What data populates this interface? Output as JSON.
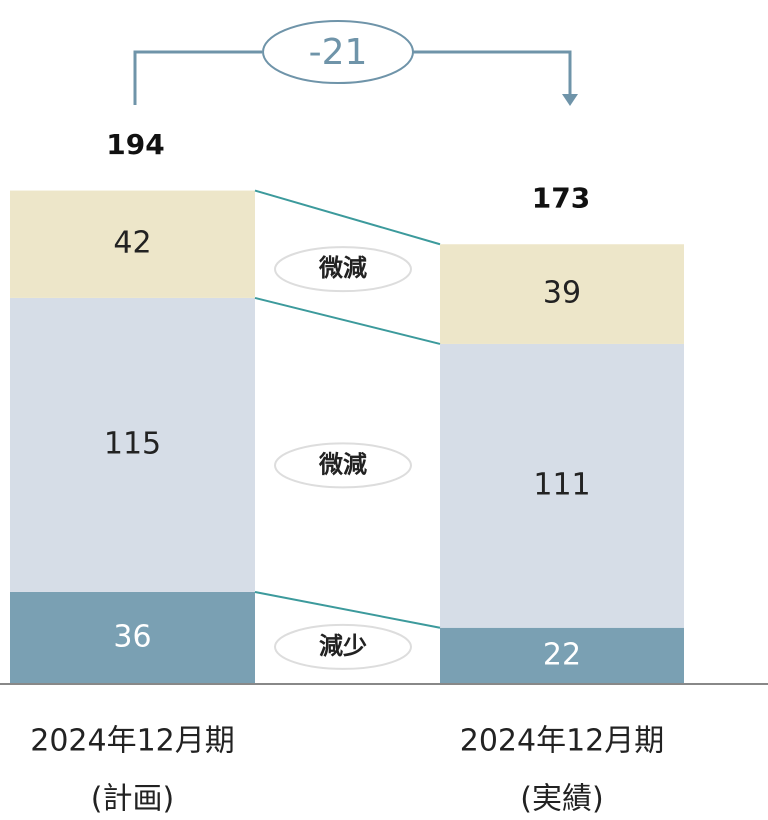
{
  "chart_data": {
    "type": "stacked-bar",
    "categories": [
      [
        "2024年12月期",
        "(計画)"
      ],
      [
        "2024年12月期",
        "(実績)"
      ]
    ],
    "series": [
      {
        "color": "#7aa0b3",
        "label_color": "#ffffff",
        "values": [
          36,
          22
        ],
        "change_label": "減少"
      },
      {
        "color": "#d6dde7",
        "label_color": "#222222",
        "values": [
          115,
          111
        ],
        "change_label": "微減"
      },
      {
        "color": "#ede6c9",
        "label_color": "#222222",
        "values": [
          42,
          39
        ],
        "change_label": "微減"
      }
    ],
    "totals": [
      194,
      173
    ],
    "difference": -21,
    "ylim": [
      0,
      194
    ],
    "connector_color": "#3c9a9c",
    "difference_color": "#6f94a9"
  }
}
